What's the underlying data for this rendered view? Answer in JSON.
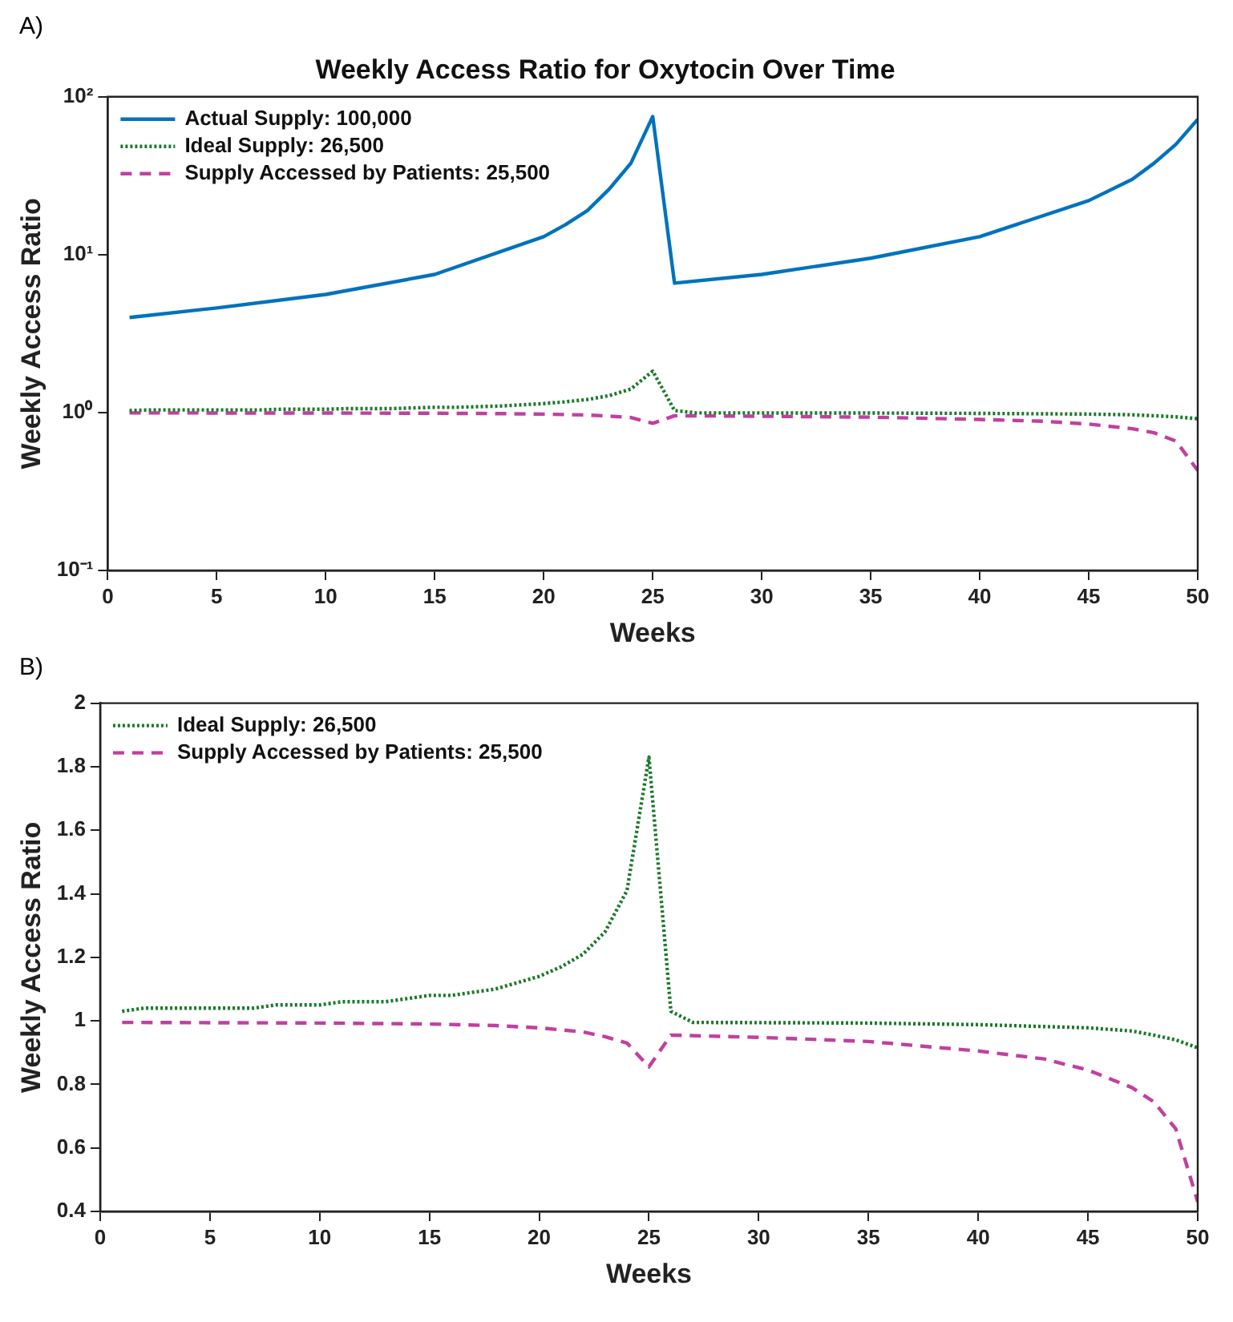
{
  "chart_data": [
    {
      "type": "line",
      "title": "Weekly Access Ratio for Oxytocin Over Time",
      "xlabel": "Weeks",
      "ylabel": "Weekly Access Ratio",
      "annotations": [
        "A)"
      ],
      "log": "y",
      "xlim": [
        0,
        50
      ],
      "xticks": [
        0,
        5,
        10,
        15,
        20,
        25,
        30,
        35,
        40,
        45,
        50
      ],
      "ylim": [
        0.1,
        100
      ],
      "yticks": [
        {
          "value": 0.1,
          "label": "10⁻¹"
        },
        {
          "value": 1,
          "label": "10⁰"
        },
        {
          "value": 10,
          "label": "10¹"
        },
        {
          "value": 100,
          "label": "10²"
        }
      ],
      "grid": false,
      "legend": "top left",
      "marker": "none",
      "series": [
        {
          "name": "Actual Supply: 100,000",
          "color": "#0072bd",
          "line_style": "solid",
          "x": [
            1,
            5,
            10,
            15,
            20,
            21,
            22,
            23,
            24,
            25,
            26,
            30,
            35,
            40,
            45,
            47,
            48,
            49,
            50
          ],
          "values": [
            4.0,
            4.6,
            5.6,
            7.5,
            13,
            15.5,
            19,
            26,
            38,
            75,
            6.6,
            7.5,
            9.5,
            13,
            22,
            30,
            38,
            50,
            72
          ]
        },
        {
          "name": "Ideal Supply: 26,500",
          "color": "#1a7a2a",
          "line_style": "dotted",
          "x": [
            1,
            2,
            7,
            8,
            10,
            11,
            13,
            15,
            16,
            18,
            20,
            21,
            22,
            23,
            24,
            25,
            26,
            27,
            35,
            40,
            45,
            47,
            48,
            49,
            50
          ],
          "values": [
            1.03,
            1.04,
            1.04,
            1.05,
            1.05,
            1.06,
            1.06,
            1.08,
            1.08,
            1.1,
            1.14,
            1.17,
            1.21,
            1.28,
            1.41,
            1.83,
            1.03,
            0.995,
            0.993,
            0.988,
            0.978,
            0.968,
            0.955,
            0.94,
            0.915
          ]
        },
        {
          "name": "Supply Accessed by Patients: 25,500",
          "color": "#c040a0",
          "line_style": "dashed",
          "x": [
            1,
            10,
            15,
            18,
            20,
            22,
            23,
            24,
            25,
            26,
            30,
            35,
            40,
            43,
            45,
            47,
            48,
            49,
            50
          ],
          "values": [
            0.995,
            0.993,
            0.99,
            0.985,
            0.978,
            0.965,
            0.95,
            0.93,
            0.855,
            0.955,
            0.948,
            0.935,
            0.905,
            0.88,
            0.845,
            0.79,
            0.745,
            0.66,
            0.43
          ]
        }
      ]
    },
    {
      "type": "line",
      "xlabel": "Weeks",
      "ylabel": "Weekly Access Ratio",
      "annotations": [
        "B)"
      ],
      "xlim": [
        0,
        50
      ],
      "xticks": [
        0,
        5,
        10,
        15,
        20,
        25,
        30,
        35,
        40,
        45,
        50
      ],
      "ylim": [
        0.4,
        2
      ],
      "yticks": [
        0.4,
        0.6,
        0.8,
        1,
        1.2,
        1.4,
        1.6,
        1.8,
        2
      ],
      "grid": false,
      "legend": "top left",
      "marker": "none",
      "series": [
        {
          "name": "Ideal Supply: 26,500",
          "color": "#1a7a2a",
          "line_style": "dotted",
          "x": [
            1,
            2,
            7,
            8,
            10,
            11,
            13,
            15,
            16,
            18,
            20,
            21,
            22,
            23,
            24,
            25,
            26,
            27,
            35,
            40,
            45,
            47,
            48,
            49,
            50
          ],
          "values": [
            1.03,
            1.04,
            1.04,
            1.05,
            1.05,
            1.06,
            1.06,
            1.08,
            1.08,
            1.1,
            1.14,
            1.17,
            1.21,
            1.28,
            1.41,
            1.83,
            1.03,
            0.995,
            0.993,
            0.988,
            0.978,
            0.968,
            0.955,
            0.94,
            0.915
          ]
        },
        {
          "name": "Supply Accessed by Patients: 25,500",
          "color": "#c040a0",
          "line_style": "dashed",
          "x": [
            1,
            10,
            15,
            18,
            20,
            22,
            23,
            24,
            25,
            26,
            30,
            35,
            40,
            43,
            45,
            47,
            48,
            49,
            50
          ],
          "values": [
            0.995,
            0.993,
            0.99,
            0.985,
            0.978,
            0.965,
            0.95,
            0.93,
            0.855,
            0.955,
            0.948,
            0.935,
            0.905,
            0.88,
            0.845,
            0.79,
            0.745,
            0.66,
            0.43
          ]
        }
      ]
    }
  ]
}
